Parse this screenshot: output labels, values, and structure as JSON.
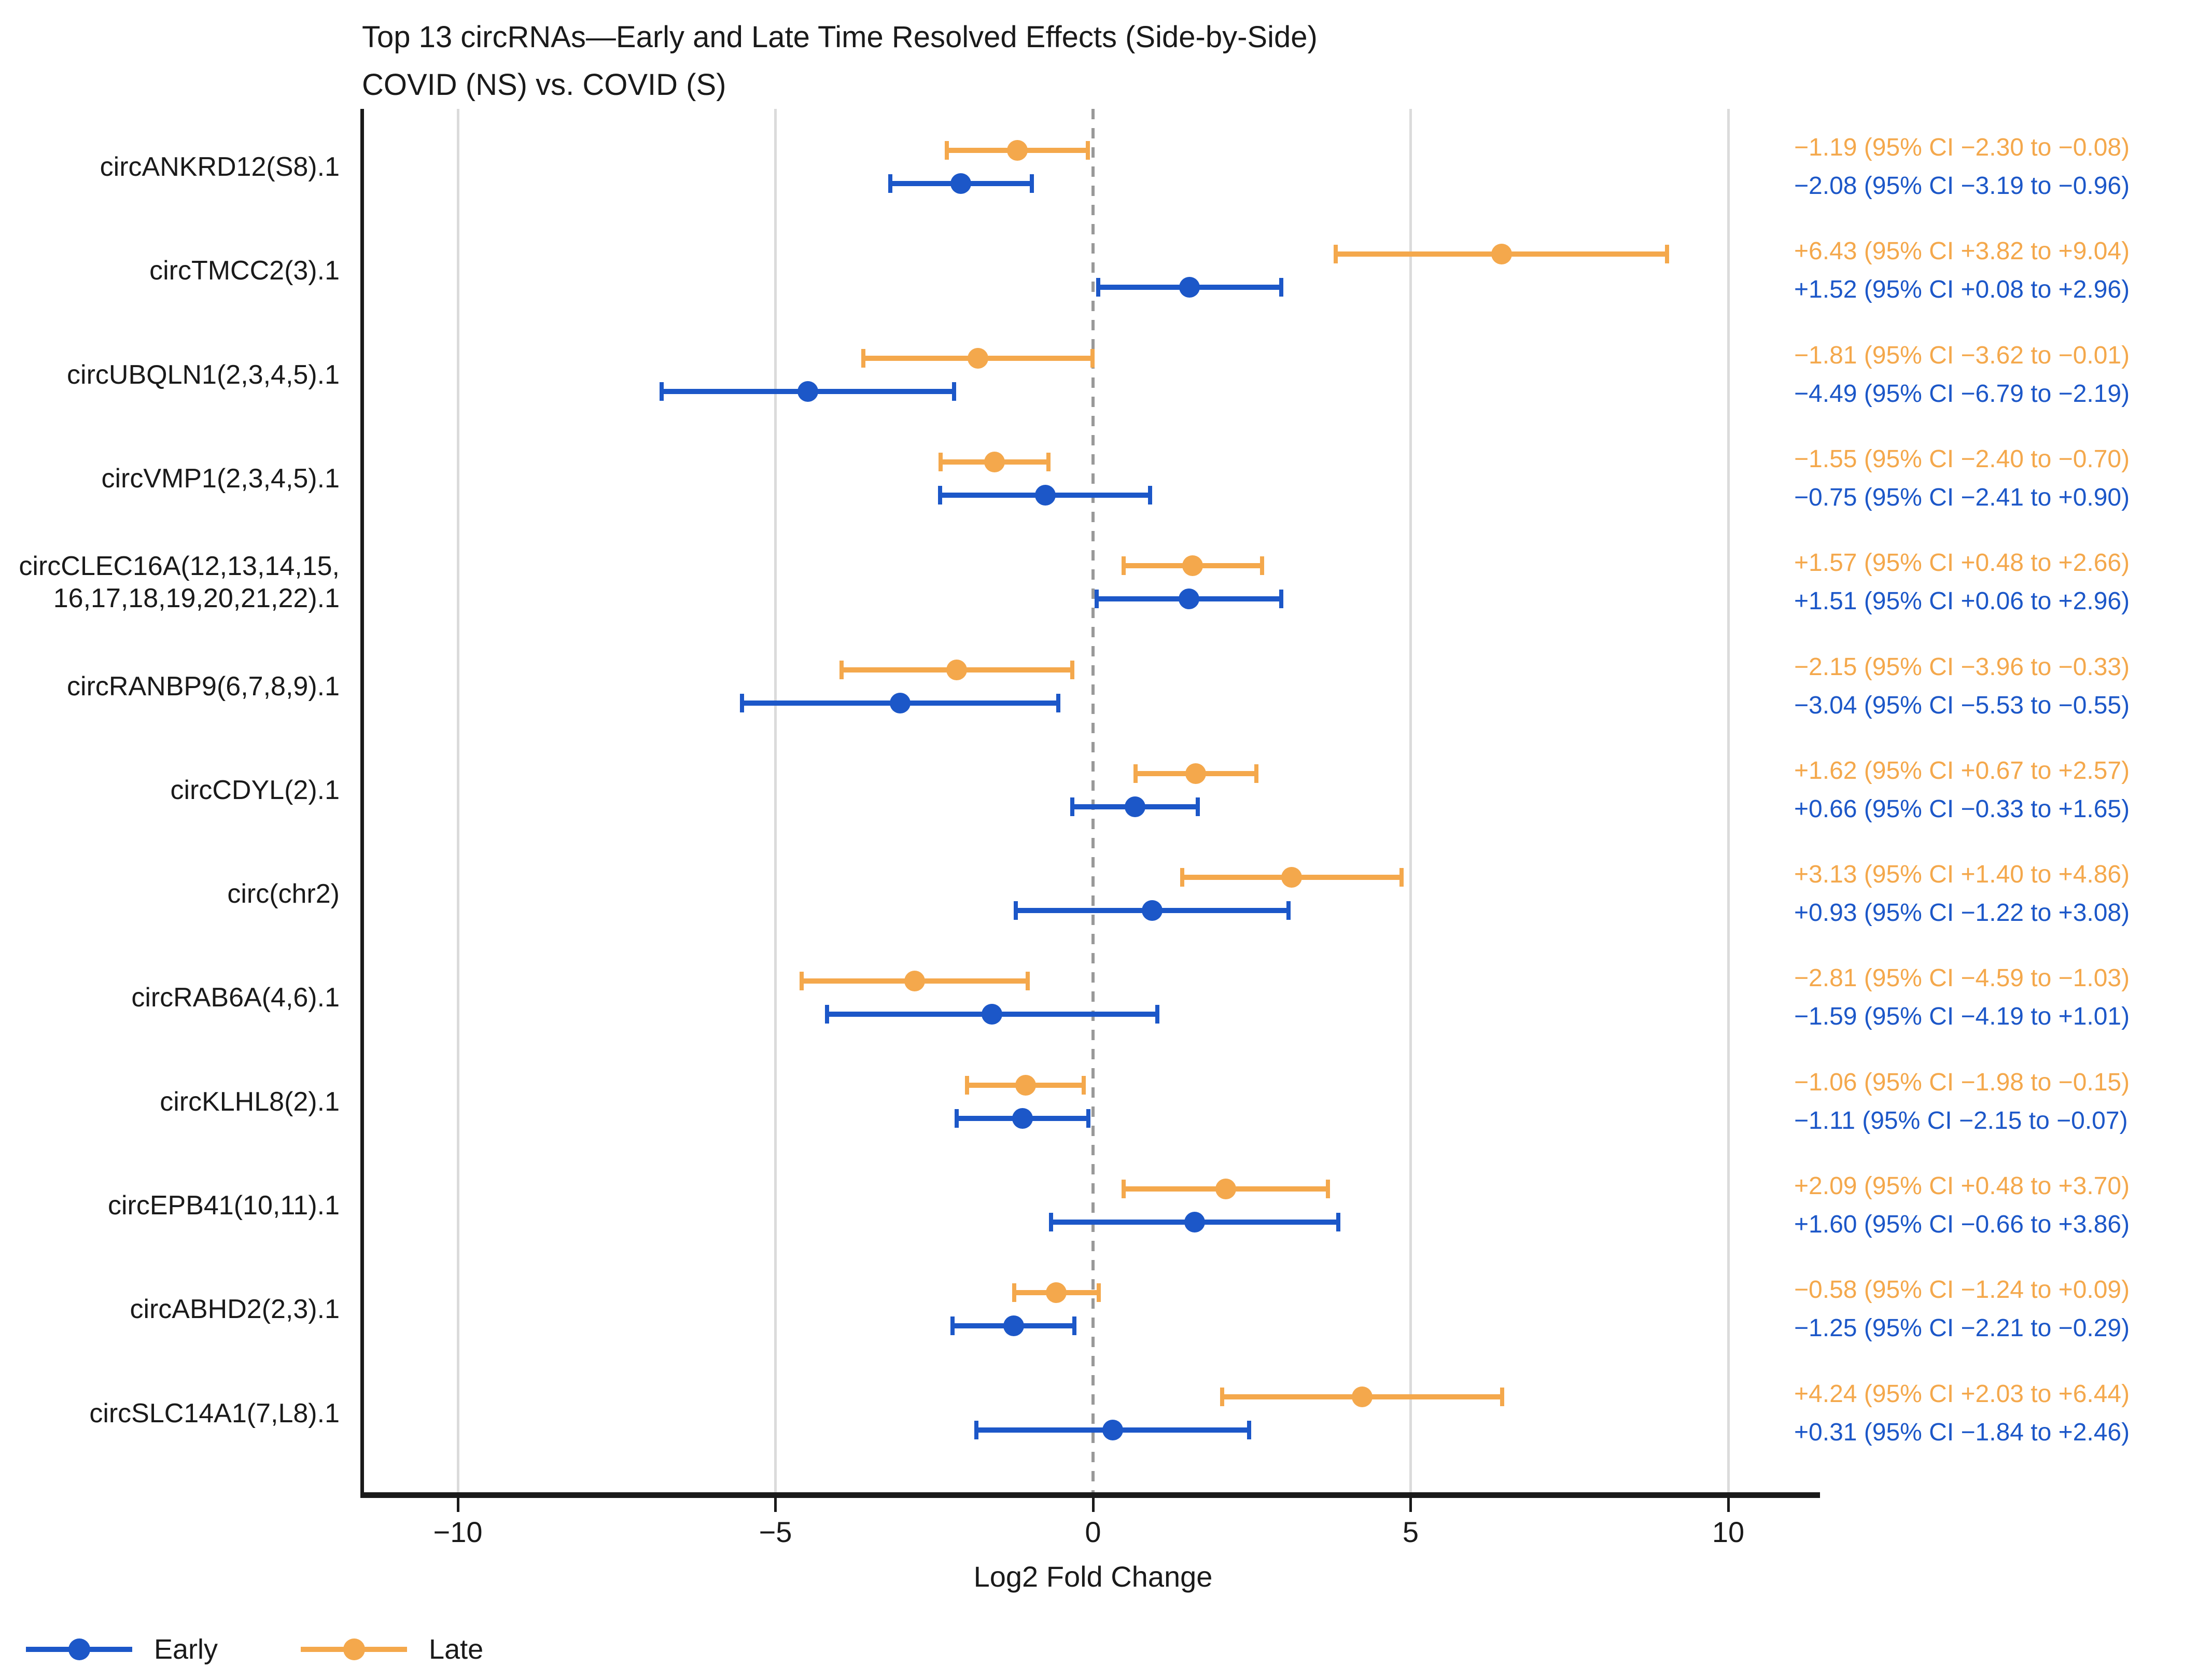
{
  "title": {
    "line1": "Top 13 circRNAs—Early and Late Time Resolved Effects (Side-by-Side)",
    "line2": "COVID (NS) vs. COVID (S)"
  },
  "colors": {
    "early": "#1C57C8",
    "late": "#F4A84C",
    "gridline": "#DBDBDB",
    "zero_line": "#999999",
    "axis": "#1A1A1A"
  },
  "legend": {
    "items": [
      {
        "label": "Early",
        "color": "#1C57C8"
      },
      {
        "label": "Late",
        "color": "#F4A84C"
      }
    ]
  },
  "chart_data": {
    "type": "scatter",
    "variant": "forest-plot-with-error-bars",
    "title": "Top 13 circRNAs—Early and Late Time Resolved Effects (Side-by-Side)",
    "subtitle": "COVID (NS) vs. COVID (S)",
    "xlabel": "Log2 Fold Change",
    "xlim": [
      -11.5,
      11.5
    ],
    "grid": "vertical-at-ticks",
    "zero_reference_line": "dashed",
    "legend_position": "bottom-left",
    "series_names": [
      "Early",
      "Late"
    ],
    "x_ticks": [
      {
        "value": -10,
        "label": "−10"
      },
      {
        "value": -5,
        "label": "−5"
      },
      {
        "value": 0,
        "label": "0"
      },
      {
        "value": 5,
        "label": "5"
      },
      {
        "value": 10,
        "label": "10"
      }
    ],
    "rows": [
      {
        "label_lines": [
          "circANKRD12(S8).1"
        ],
        "late": {
          "est": -1.19,
          "lo": -2.3,
          "hi": -0.08,
          "text": "−1.19 (95% CI −2.30 to −0.08)"
        },
        "early": {
          "est": -2.08,
          "lo": -3.19,
          "hi": -0.96,
          "text": "−2.08 (95% CI −3.19 to −0.96)"
        }
      },
      {
        "label_lines": [
          "circTMCC2(3).1"
        ],
        "late": {
          "est": 6.43,
          "lo": 3.82,
          "hi": 9.04,
          "text": "+6.43 (95% CI +3.82 to +9.04)"
        },
        "early": {
          "est": 1.52,
          "lo": 0.08,
          "hi": 2.96,
          "text": "+1.52 (95% CI +0.08 to +2.96)"
        }
      },
      {
        "label_lines": [
          "circUBQLN1(2,3,4,5).1"
        ],
        "late": {
          "est": -1.81,
          "lo": -3.62,
          "hi": -0.01,
          "text": "−1.81 (95% CI −3.62 to −0.01)"
        },
        "early": {
          "est": -4.49,
          "lo": -6.79,
          "hi": -2.19,
          "text": "−4.49 (95% CI −6.79 to −2.19)"
        }
      },
      {
        "label_lines": [
          "circVMP1(2,3,4,5).1"
        ],
        "late": {
          "est": -1.55,
          "lo": -2.4,
          "hi": -0.7,
          "text": "−1.55 (95% CI −2.40 to −0.70)"
        },
        "early": {
          "est": -0.75,
          "lo": -2.41,
          "hi": 0.9,
          "text": "−0.75 (95% CI −2.41 to +0.90)"
        }
      },
      {
        "label_lines": [
          "circCLEC16A(12,13,14,15,",
          "16,17,18,19,20,21,22).1"
        ],
        "late": {
          "est": 1.57,
          "lo": 0.48,
          "hi": 2.66,
          "text": "+1.57 (95% CI +0.48 to +2.66)"
        },
        "early": {
          "est": 1.51,
          "lo": 0.06,
          "hi": 2.96,
          "text": "+1.51 (95% CI +0.06 to +2.96)"
        }
      },
      {
        "label_lines": [
          "circRANBP9(6,7,8,9).1"
        ],
        "late": {
          "est": -2.15,
          "lo": -3.96,
          "hi": -0.33,
          "text": "−2.15 (95% CI −3.96 to −0.33)"
        },
        "early": {
          "est": -3.04,
          "lo": -5.53,
          "hi": -0.55,
          "text": "−3.04 (95% CI −5.53 to −0.55)"
        }
      },
      {
        "label_lines": [
          "circCDYL(2).1"
        ],
        "late": {
          "est": 1.62,
          "lo": 0.67,
          "hi": 2.57,
          "text": "+1.62 (95% CI +0.67 to +2.57)"
        },
        "early": {
          "est": 0.66,
          "lo": -0.33,
          "hi": 1.65,
          "text": "+0.66 (95% CI −0.33 to +1.65)"
        }
      },
      {
        "label_lines": [
          "circ(chr2)"
        ],
        "late": {
          "est": 3.13,
          "lo": 1.4,
          "hi": 4.86,
          "text": "+3.13 (95% CI +1.40 to +4.86)"
        },
        "early": {
          "est": 0.93,
          "lo": -1.22,
          "hi": 3.08,
          "text": "+0.93 (95% CI −1.22 to +3.08)"
        }
      },
      {
        "label_lines": [
          "circRAB6A(4,6).1"
        ],
        "late": {
          "est": -2.81,
          "lo": -4.59,
          "hi": -1.03,
          "text": "−2.81 (95% CI −4.59 to −1.03)"
        },
        "early": {
          "est": -1.59,
          "lo": -4.19,
          "hi": 1.01,
          "text": "−1.59 (95% CI −4.19 to +1.01)"
        }
      },
      {
        "label_lines": [
          "circKLHL8(2).1"
        ],
        "late": {
          "est": -1.06,
          "lo": -1.98,
          "hi": -0.15,
          "text": "−1.06 (95% CI −1.98 to −0.15)"
        },
        "early": {
          "est": -1.11,
          "lo": -2.15,
          "hi": -0.07,
          "text": "−1.11 (95% CI −2.15 to −0.07)"
        }
      },
      {
        "label_lines": [
          "circEPB41(10,11).1"
        ],
        "late": {
          "est": 2.09,
          "lo": 0.48,
          "hi": 3.7,
          "text": "+2.09 (95% CI +0.48 to +3.70)"
        },
        "early": {
          "est": 1.6,
          "lo": -0.66,
          "hi": 3.86,
          "text": "+1.60 (95% CI −0.66 to +3.86)"
        }
      },
      {
        "label_lines": [
          "circABHD2(2,3).1"
        ],
        "late": {
          "est": -0.58,
          "lo": -1.24,
          "hi": 0.09,
          "text": "−0.58 (95% CI −1.24 to +0.09)"
        },
        "early": {
          "est": -1.25,
          "lo": -2.21,
          "hi": -0.29,
          "text": "−1.25 (95% CI −2.21 to −0.29)"
        }
      },
      {
        "label_lines": [
          "circSLC14A1(7,L8).1"
        ],
        "late": {
          "est": 4.24,
          "lo": 2.03,
          "hi": 6.44,
          "text": "+4.24 (95% CI +2.03 to +6.44)"
        },
        "early": {
          "est": 0.31,
          "lo": -1.84,
          "hi": 2.46,
          "text": "+0.31 (95% CI −1.84 to +2.46)"
        }
      }
    ]
  }
}
